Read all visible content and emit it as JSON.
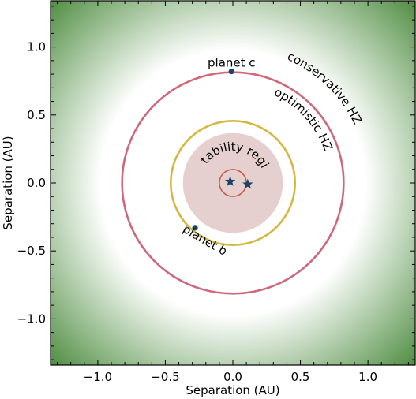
{
  "chart_data": {
    "type": "scatter",
    "title": "",
    "xlabel": "Separation (AU)",
    "ylabel": "Separation (AU)",
    "xlim": [
      -1.35,
      1.35
    ],
    "ylim": [
      -1.34,
      1.34
    ],
    "xticks": [
      -1.0,
      -0.5,
      0.0,
      0.5,
      1.0
    ],
    "yticks": [
      -1.0,
      -0.5,
      0.0,
      0.5,
      1.0
    ],
    "xtick_labels": [
      "−1.0",
      "−0.5",
      "0.0",
      "0.5",
      "1.0"
    ],
    "ytick_labels": [
      "−1.0",
      "−0.5",
      "0.0",
      "0.5",
      "1.0"
    ],
    "grid": false,
    "habitable_zone": {
      "optimistic_inner": 0.66,
      "conservative_inner": 0.98,
      "optimistic_label": "optimistic  HZ",
      "conservative_label": "conservative  HZ",
      "color": "#4a8a3c"
    },
    "instability_region": {
      "radius": 0.37,
      "label": "instability  region",
      "color": "#e6cfcf"
    },
    "orbits": [
      {
        "radius": 0.82,
        "color": "#d0687c"
      },
      {
        "radius": 0.46,
        "color": "#d6b840"
      },
      {
        "radius": 0.1,
        "color": "#c0604a"
      }
    ],
    "stars": [
      {
        "x": -0.02,
        "y": 0.01
      },
      {
        "x": 0.11,
        "y": -0.01
      }
    ],
    "planets": [
      {
        "name": "planet  c",
        "x": -0.01,
        "y": 0.82
      },
      {
        "name": "planet  b",
        "x": -0.28,
        "y": -0.33
      }
    ],
    "marker_color": "#1a4466"
  }
}
